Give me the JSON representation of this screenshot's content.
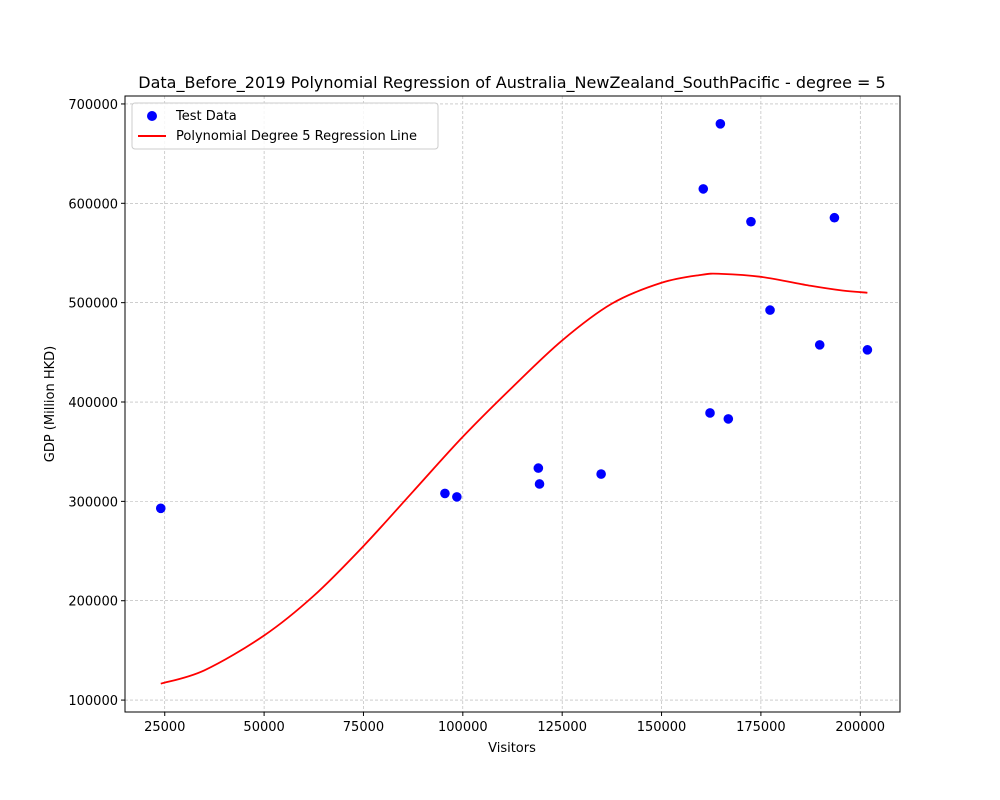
{
  "chart_data": {
    "type": "scatter",
    "title": "Data_Before_2019 Polynomial Regression of Australia_NewZealand_SouthPacific - degree = 5",
    "xlabel": "Visitors",
    "ylabel": "GDP (Million HKD)",
    "xlim": [
      15000,
      210000
    ],
    "ylim": [
      88000,
      708000
    ],
    "x_ticks": [
      25000,
      50000,
      75000,
      100000,
      125000,
      150000,
      175000,
      200000
    ],
    "y_ticks": [
      100000,
      200000,
      300000,
      400000,
      500000,
      600000,
      700000
    ],
    "grid": true,
    "legend_position": "upper-left",
    "series": [
      {
        "name": "Test Data",
        "kind": "scatter",
        "color": "#0000ff",
        "points": [
          {
            "x": 24000,
            "y": 293000
          },
          {
            "x": 95500,
            "y": 308000
          },
          {
            "x": 98500,
            "y": 304500
          },
          {
            "x": 119000,
            "y": 333500
          },
          {
            "x": 119300,
            "y": 317500
          },
          {
            "x": 134800,
            "y": 327500
          },
          {
            "x": 160500,
            "y": 614500
          },
          {
            "x": 162200,
            "y": 389000
          },
          {
            "x": 164800,
            "y": 680000
          },
          {
            "x": 166800,
            "y": 383000
          },
          {
            "x": 172500,
            "y": 581500
          },
          {
            "x": 177300,
            "y": 492500
          },
          {
            "x": 189800,
            "y": 457500
          },
          {
            "x": 193500,
            "y": 585500
          },
          {
            "x": 201800,
            "y": 452500
          }
        ]
      },
      {
        "name": "Polynomial Degree 5 Regression Line",
        "kind": "line",
        "color": "#ff0000",
        "points": [
          {
            "x": 24000,
            "y": 116500
          },
          {
            "x": 35000,
            "y": 130000
          },
          {
            "x": 50000,
            "y": 165000
          },
          {
            "x": 62500,
            "y": 205000
          },
          {
            "x": 75000,
            "y": 255000
          },
          {
            "x": 87500,
            "y": 310000
          },
          {
            "x": 100000,
            "y": 365000
          },
          {
            "x": 112500,
            "y": 415000
          },
          {
            "x": 125000,
            "y": 462000
          },
          {
            "x": 137500,
            "y": 499000
          },
          {
            "x": 150000,
            "y": 520000
          },
          {
            "x": 160000,
            "y": 528000
          },
          {
            "x": 165000,
            "y": 529000
          },
          {
            "x": 175000,
            "y": 526000
          },
          {
            "x": 187500,
            "y": 517000
          },
          {
            "x": 195000,
            "y": 512500
          },
          {
            "x": 201800,
            "y": 510000
          }
        ]
      }
    ]
  }
}
